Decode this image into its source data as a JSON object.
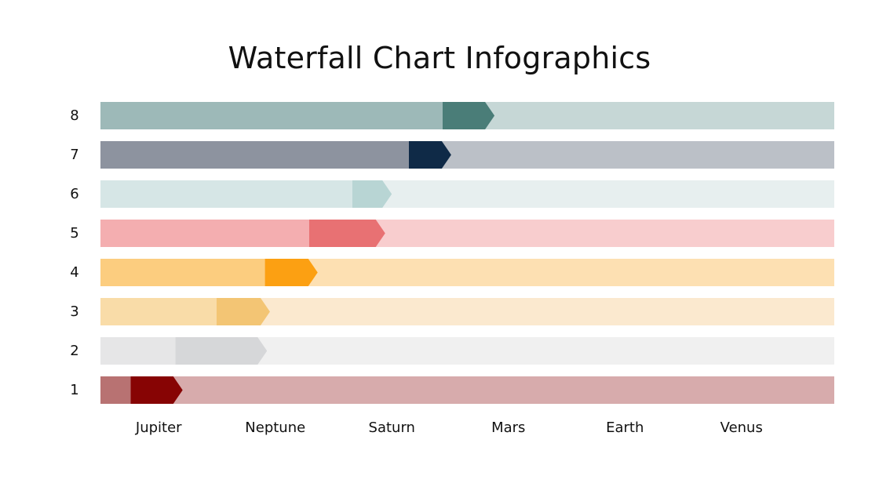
{
  "title": "Waterfall Chart Infographics",
  "chart_data": {
    "type": "bar",
    "subtype": "waterfall-horizontal",
    "title": "Waterfall Chart Infographics",
    "xlabel": "",
    "ylabel": "",
    "x_categories": [
      "Jupiter",
      "Neptune",
      "Saturn",
      "Mars",
      "Earth",
      "Venus"
    ],
    "y_categories": [
      "8",
      "7",
      "6",
      "5",
      "4",
      "3",
      "2",
      "1"
    ],
    "value_scale": "percent of track width (0-100); no numeric axis or data labels are shown",
    "value_source": "estimated from pixel positions of bar segments, not read from the chart",
    "xlim": [
      0,
      100
    ],
    "grid": false,
    "legend": "none",
    "rows": [
      {
        "label": "8",
        "start": 46.6,
        "end": 53.7,
        "base_color": "#9db9b8",
        "step_color": "#4a7d78",
        "track_color": "#c6d7d6"
      },
      {
        "label": "7",
        "start": 42.0,
        "end": 47.8,
        "base_color": "#8d939f",
        "step_color": "#0f2a47",
        "track_color": "#bbc0c7"
      },
      {
        "label": "6",
        "start": 34.3,
        "end": 39.7,
        "base_color": "#d6e6e6",
        "step_color": "#b8d5d4",
        "track_color": "#e7efef"
      },
      {
        "label": "5",
        "start": 28.4,
        "end": 38.8,
        "base_color": "#f4aeb0",
        "step_color": "#e87173",
        "track_color": "#f8cdce"
      },
      {
        "label": "4",
        "start": 22.4,
        "end": 29.6,
        "base_color": "#fccd7f",
        "step_color": "#fca012",
        "track_color": "#fde0b2"
      },
      {
        "label": "3",
        "start": 15.8,
        "end": 23.1,
        "base_color": "#f9dca8",
        "step_color": "#f3c574",
        "track_color": "#fbe9cf"
      },
      {
        "label": "2",
        "start": 10.2,
        "end": 22.7,
        "base_color": "#e6e6e7",
        "step_color": "#d6d7d9",
        "track_color": "#f0f0f0"
      },
      {
        "label": "1",
        "start": 4.1,
        "end": 11.2,
        "base_color": "#b87272",
        "step_color": "#870404",
        "track_color": "#d7abac"
      }
    ]
  },
  "rows": [
    {
      "label": "8"
    },
    {
      "label": "7"
    },
    {
      "label": "6"
    },
    {
      "label": "5"
    },
    {
      "label": "4"
    },
    {
      "label": "3"
    },
    {
      "label": "2"
    },
    {
      "label": "1"
    }
  ],
  "x_axis": {
    "labels": [
      "Jupiter",
      "Neptune",
      "Saturn",
      "Mars",
      "Earth",
      "Venus"
    ]
  }
}
